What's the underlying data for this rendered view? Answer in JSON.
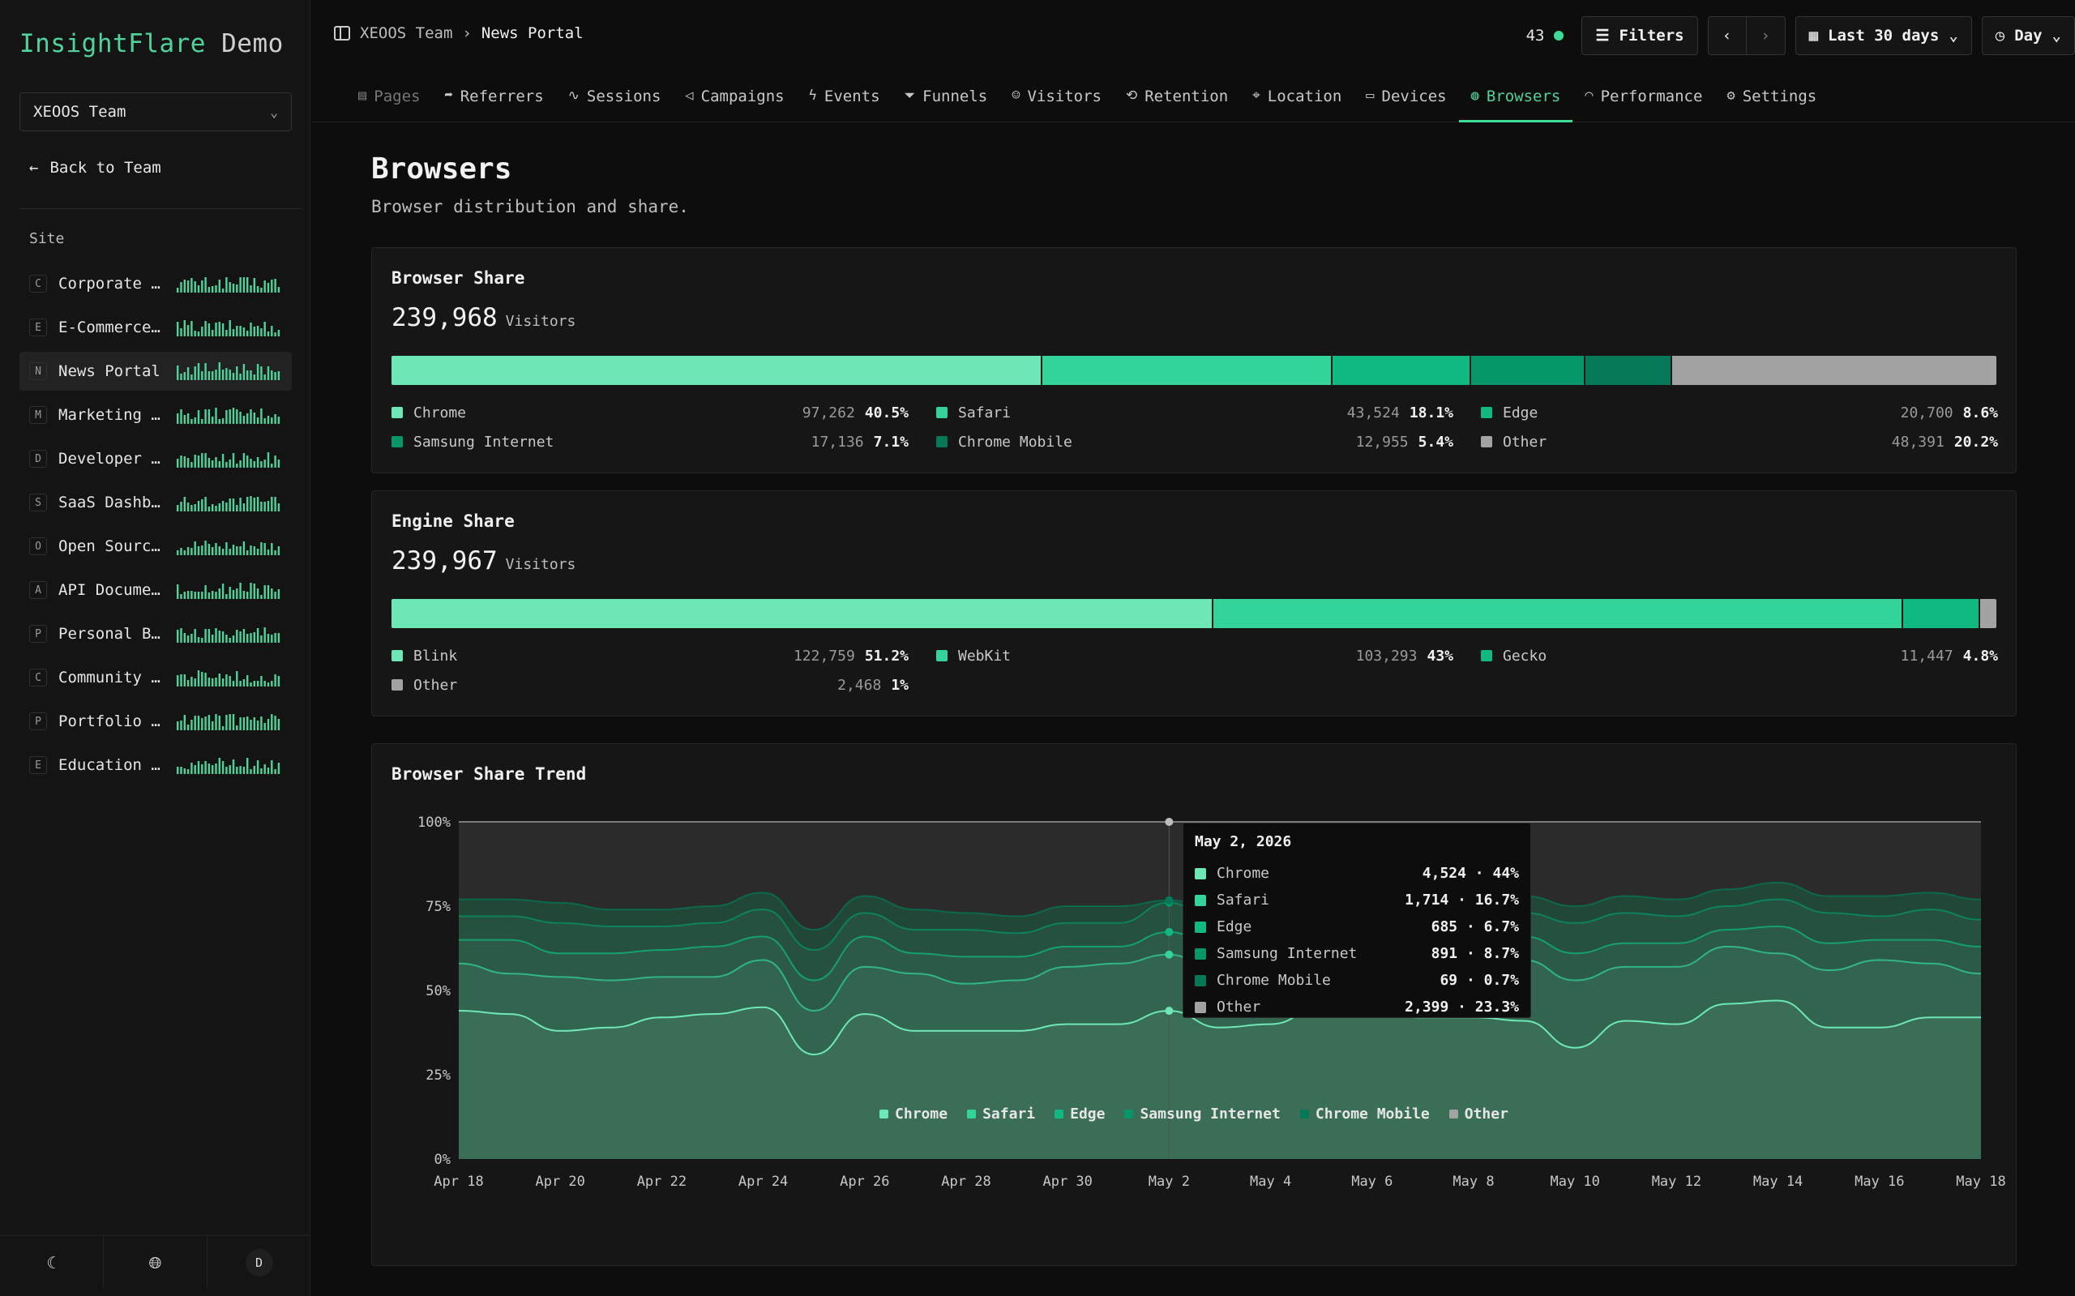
{
  "app": {
    "brand_primary": "InsightFlare",
    "brand_secondary": "Demo"
  },
  "sidebar": {
    "team_select": "XEOOS Team",
    "back_label": "Back to Team",
    "section_label": "Site",
    "sites": [
      {
        "letter": "C",
        "name": "Corporate W…",
        "active": false
      },
      {
        "letter": "E",
        "name": "E-Commerce …",
        "active": false
      },
      {
        "letter": "N",
        "name": "News Portal",
        "active": true
      },
      {
        "letter": "M",
        "name": "Marketing L…",
        "active": false
      },
      {
        "letter": "D",
        "name": "Developer D…",
        "active": false
      },
      {
        "letter": "S",
        "name": "SaaS Dashbo…",
        "active": false
      },
      {
        "letter": "O",
        "name": "Open Source…",
        "active": false
      },
      {
        "letter": "A",
        "name": "API Documen…",
        "active": false
      },
      {
        "letter": "P",
        "name": "Personal Bl…",
        "active": false
      },
      {
        "letter": "C",
        "name": "Community F…",
        "active": false
      },
      {
        "letter": "P",
        "name": "Portfolio S…",
        "active": false
      },
      {
        "letter": "E",
        "name": "Education P…",
        "active": false
      }
    ],
    "footer": {
      "theme_icon": "moon-icon",
      "language_icon": "globe-icon",
      "avatar_letter": "D"
    }
  },
  "header": {
    "breadcrumb": {
      "team": "XEOOS Team",
      "site": "News Portal"
    },
    "live_count": "43",
    "filters_label": "Filters",
    "date_range": "Last 30 days",
    "granularity": "Day"
  },
  "tabs": [
    {
      "label": "Pages",
      "icon": "file-icon"
    },
    {
      "label": "Referrers",
      "icon": "share-icon"
    },
    {
      "label": "Sessions",
      "icon": "activity-icon"
    },
    {
      "label": "Campaigns",
      "icon": "megaphone-icon"
    },
    {
      "label": "Events",
      "icon": "bolt-icon"
    },
    {
      "label": "Funnels",
      "icon": "funnel-icon"
    },
    {
      "label": "Visitors",
      "icon": "user-icon"
    },
    {
      "label": "Retention",
      "icon": "repeat-icon"
    },
    {
      "label": "Location",
      "icon": "pin-icon"
    },
    {
      "label": "Devices",
      "icon": "monitor-icon"
    },
    {
      "label": "Browsers",
      "icon": "globe-icon"
    },
    {
      "label": "Performance",
      "icon": "gauge-icon"
    },
    {
      "label": "Settings",
      "icon": "gear-icon"
    }
  ],
  "active_tab": "Browsers",
  "page": {
    "title": "Browsers",
    "subtitle": "Browser distribution and share."
  },
  "browser_share": {
    "title": "Browser Share",
    "total": "239,968",
    "total_unit": "Visitors",
    "items": [
      {
        "name": "Chrome",
        "count": "97,262",
        "pct": "40.5%",
        "value": 40.5,
        "color": "#6ee7b7"
      },
      {
        "name": "Safari",
        "count": "43,524",
        "pct": "18.1%",
        "value": 18.1,
        "color": "#34d399"
      },
      {
        "name": "Edge",
        "count": "20,700",
        "pct": "8.6%",
        "value": 8.6,
        "color": "#10b981"
      },
      {
        "name": "Samsung Internet",
        "count": "17,136",
        "pct": "7.1%",
        "value": 7.1,
        "color": "#059669"
      },
      {
        "name": "Chrome Mobile",
        "count": "12,955",
        "pct": "5.4%",
        "value": 5.4,
        "color": "#047857"
      },
      {
        "name": "Other",
        "count": "48,391",
        "pct": "20.2%",
        "value": 20.2,
        "color": "#a3a3a3"
      }
    ]
  },
  "engine_share": {
    "title": "Engine Share",
    "total": "239,967",
    "total_unit": "Visitors",
    "items": [
      {
        "name": "Blink",
        "count": "122,759",
        "pct": "51.2%",
        "value": 51.2,
        "color": "#6ee7b7"
      },
      {
        "name": "WebKit",
        "count": "103,293",
        "pct": "43%",
        "value": 43,
        "color": "#34d399"
      },
      {
        "name": "Gecko",
        "count": "11,447",
        "pct": "4.8%",
        "value": 4.8,
        "color": "#10b981"
      },
      {
        "name": "Other",
        "count": "2,468",
        "pct": "1%",
        "value": 1,
        "color": "#a3a3a3"
      }
    ]
  },
  "trend": {
    "title": "Browser Share Trend",
    "tooltip": {
      "date": "May 2, 2026",
      "rows": [
        {
          "name": "Chrome",
          "value": "4,524 · 44%",
          "color": "#6ee7b7"
        },
        {
          "name": "Safari",
          "value": "1,714 · 16.7%",
          "color": "#34d399"
        },
        {
          "name": "Edge",
          "value": "685 · 6.7%",
          "color": "#10b981"
        },
        {
          "name": "Samsung Internet",
          "value": "891 · 8.7%",
          "color": "#059669"
        },
        {
          "name": "Chrome Mobile",
          "value": "69 · 0.7%",
          "color": "#047857"
        },
        {
          "name": "Other",
          "value": "2,399 · 23.3%",
          "color": "#a3a3a3"
        }
      ]
    }
  },
  "chart_data": {
    "type": "area",
    "stacked": "percent",
    "title": "Browser Share Trend",
    "x": [
      "Apr 18",
      "Apr 19",
      "Apr 20",
      "Apr 21",
      "Apr 22",
      "Apr 23",
      "Apr 24",
      "Apr 25",
      "Apr 26",
      "Apr 27",
      "Apr 28",
      "Apr 29",
      "Apr 30",
      "May 1",
      "May 2",
      "May 3",
      "May 4",
      "May 5",
      "May 6",
      "May 7",
      "May 8",
      "May 9",
      "May 10",
      "May 11",
      "May 12",
      "May 13",
      "May 14",
      "May 15",
      "May 16",
      "May 17",
      "May 18"
    ],
    "x_tick_labels": [
      "Apr 18",
      "Apr 20",
      "Apr 22",
      "Apr 24",
      "Apr 26",
      "Apr 28",
      "Apr 30",
      "May 2",
      "May 4",
      "May 6",
      "May 8",
      "May 10",
      "May 12",
      "May 14",
      "May 16",
      "May 18"
    ],
    "y_tick_labels": [
      "0%",
      "25%",
      "50%",
      "75%",
      "100%"
    ],
    "ylim": [
      0,
      100
    ],
    "series": [
      {
        "name": "Chrome",
        "color": "#6ee7b7",
        "values": [
          44,
          43,
          38,
          39,
          42,
          43,
          45,
          31,
          43,
          38,
          38,
          38,
          40,
          40,
          44,
          39,
          40,
          45,
          43,
          42,
          42,
          41,
          33,
          41,
          40,
          46,
          47,
          39,
          39,
          42,
          42
        ]
      },
      {
        "name": "Safari",
        "color": "#34d399",
        "values": [
          14,
          12,
          16,
          14,
          12,
          11,
          14,
          13,
          14,
          17,
          14,
          15,
          17,
          18,
          16.7,
          16,
          18,
          14,
          16,
          18,
          16,
          18,
          20,
          16,
          17,
          17,
          14,
          17,
          20,
          16,
          13
        ]
      },
      {
        "name": "Edge",
        "color": "#10b981",
        "values": [
          7,
          10,
          7,
          8,
          8,
          9,
          7,
          9,
          9,
          6,
          8,
          7,
          6,
          5,
          6.7,
          7,
          6,
          7,
          8,
          6,
          7,
          7,
          8,
          7,
          7,
          5,
          8,
          8,
          6,
          7,
          8
        ]
      },
      {
        "name": "Samsung Internet",
        "color": "#059669",
        "values": [
          7,
          7,
          9,
          8,
          7,
          7,
          8,
          9,
          7,
          7,
          8,
          7,
          7,
          7,
          8.7,
          7,
          9,
          7,
          7,
          8,
          7,
          7,
          9,
          9,
          8,
          7,
          8,
          9,
          7,
          9,
          8
        ]
      },
      {
        "name": "Chrome Mobile",
        "color": "#047857",
        "values": [
          5,
          5,
          6,
          5,
          5,
          5,
          5,
          6,
          5,
          6,
          5,
          5,
          5,
          5,
          0.7,
          5,
          5,
          5,
          5,
          5,
          5,
          5,
          5,
          5,
          5,
          5,
          5,
          5,
          6,
          5,
          6
        ]
      },
      {
        "name": "Other",
        "color": "#a3a3a3",
        "values": [
          23,
          23,
          24,
          26,
          26,
          25,
          21,
          32,
          22,
          26,
          27,
          28,
          25,
          25,
          23.3,
          26,
          22,
          22,
          21,
          21,
          23,
          22,
          25,
          22,
          23,
          20,
          18,
          22,
          22,
          21,
          23
        ]
      }
    ],
    "highlighted_x": "May 2",
    "legend": "bottom"
  }
}
